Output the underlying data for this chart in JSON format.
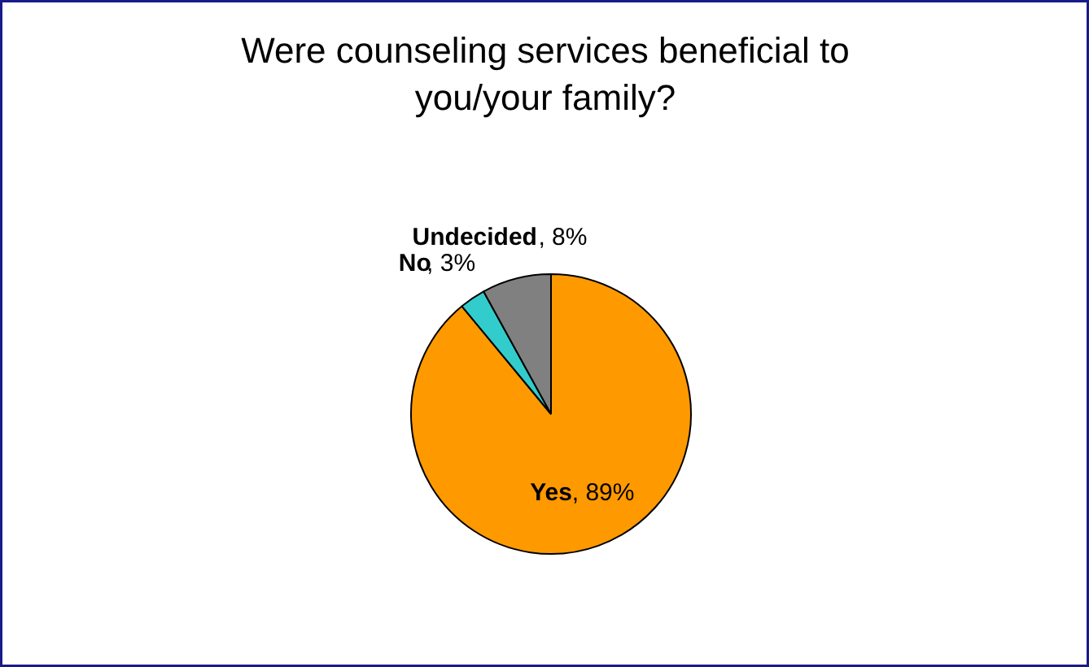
{
  "chart_data": {
    "type": "pie",
    "title": "Were counseling services beneficial to\nyou/your family?",
    "categories": [
      "Yes",
      "No",
      "Undecided"
    ],
    "values": [
      89,
      3,
      8
    ],
    "colors": [
      "#ff9900",
      "#33cccc",
      "#808080"
    ],
    "value_labels": [
      ", 89%",
      ", 3%",
      ", 8%"
    ]
  }
}
